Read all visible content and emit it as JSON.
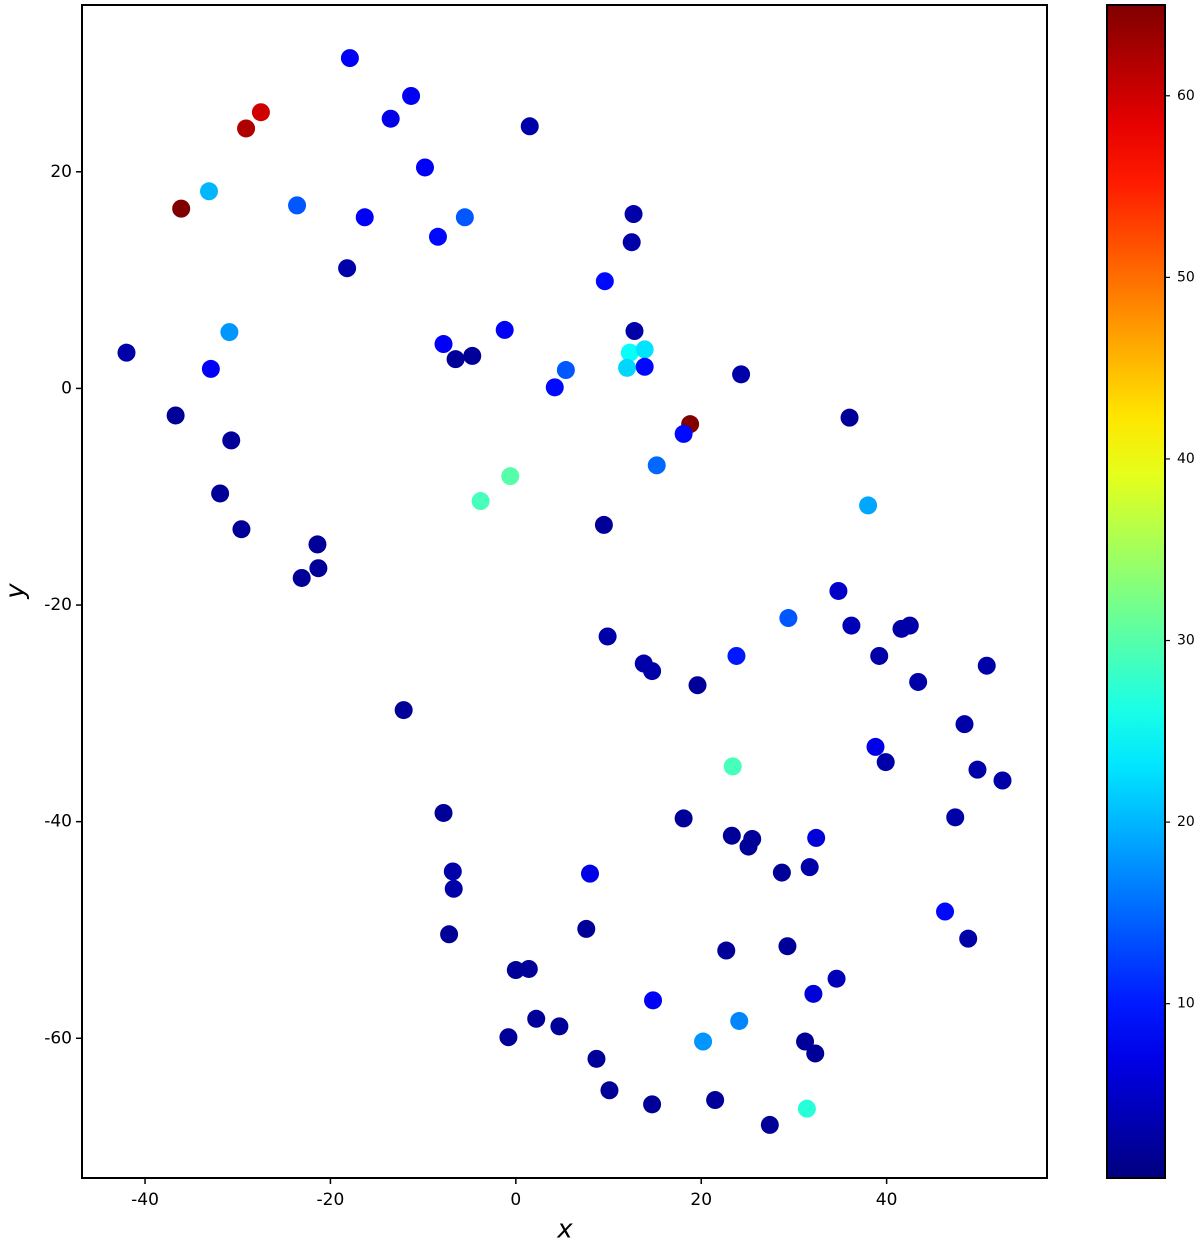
{
  "chart_data": {
    "type": "scatter",
    "xlabel": "x",
    "ylabel": "y",
    "colormap": "jet",
    "xlim": [
      -46.8,
      57.3
    ],
    "ylim": [
      -72.9,
      35.4
    ],
    "xticks": [
      -40,
      -20,
      0,
      20,
      40
    ],
    "yticks": [
      -60,
      -40,
      -20,
      0,
      20
    ],
    "clim": [
      0.4,
      65
    ],
    "cticks": [
      10,
      20,
      30,
      40,
      50,
      60
    ],
    "x": [
      -17.9,
      -11.3,
      -13.5,
      -27.5,
      -29.1,
      1.5,
      -9.8,
      -33.1,
      -36.1,
      -23.6,
      -16.3,
      -5.5,
      -8.4,
      12.7,
      12.5,
      -18.2,
      9.6,
      -42.0,
      -30.9,
      -32.9,
      -7.8,
      -6.5,
      -4.7,
      -1.2,
      12.8,
      12.3,
      13.9,
      12.0,
      13.9,
      5.4,
      4.2,
      24.3,
      -36.7,
      -30.7,
      18.8,
      18.1,
      36.0,
      15.2,
      -0.6,
      -3.8,
      -31.9,
      -29.6,
      9.5,
      38.0,
      -21.4,
      -21.3,
      -23.1,
      34.8,
      29.4,
      36.2,
      41.6,
      42.5,
      9.9,
      23.8,
      39.2,
      13.8,
      14.7,
      19.6,
      43.4,
      50.8,
      -12.1,
      48.4,
      38.8,
      39.9,
      23.4,
      49.8,
      52.5,
      -7.8,
      18.1,
      47.4,
      23.3,
      25.5,
      32.4,
      25.1,
      -6.8,
      -6.7,
      8.0,
      28.7,
      31.7,
      46.3,
      -7.2,
      7.6,
      48.8,
      22.7,
      29.3,
      0.0,
      1.4,
      34.6,
      32.1,
      14.8,
      2.2,
      4.7,
      24.1,
      -0.8,
      20.2,
      31.2,
      32.3,
      8.7,
      10.1,
      21.5,
      14.7,
      31.4,
      27.4
    ],
    "values": [
      30.5,
      27.0,
      24.9,
      25.5,
      24.0,
      24.2,
      20.4,
      18.2,
      16.6,
      16.9,
      15.8,
      15.8,
      14.0,
      16.1,
      13.5,
      11.1,
      9.9,
      3.3,
      5.2,
      1.8,
      4.1,
      2.7,
      3.0,
      5.4,
      5.3,
      3.3,
      3.6,
      1.9,
      2.0,
      1.7,
      0.1,
      1.3,
      -2.5,
      -4.8,
      -3.3,
      -4.2,
      -2.7,
      -7.1,
      -8.1,
      -10.4,
      -9.7,
      -13.0,
      -12.6,
      -10.8,
      -14.4,
      -16.6,
      -17.5,
      -18.7,
      -21.2,
      -21.9,
      -22.2,
      -21.9,
      -22.9,
      -24.7,
      -24.7,
      -25.4,
      -26.1,
      -27.4,
      -27.1,
      -25.6,
      -29.7,
      -31.0,
      -33.1,
      -34.5,
      -34.9,
      -35.2,
      -36.2,
      -39.2,
      -39.7,
      -39.6,
      -41.3,
      -41.6,
      -41.5,
      -42.3,
      -44.6,
      -46.2,
      -44.8,
      -44.7,
      -44.2,
      -48.3,
      -50.4,
      -49.9,
      -50.8,
      -51.9,
      -51.5,
      -53.7,
      -53.6,
      -54.5,
      -55.9,
      -56.5,
      -58.2,
      -58.9,
      -58.4,
      -59.9,
      -60.3,
      -60.3,
      -61.4,
      -61.9,
      -64.8,
      -65.7,
      -66.1,
      -66.5,
      -68.0
    ],
    "c": [
      8,
      8,
      7,
      60,
      62,
      3,
      8,
      20,
      65,
      14,
      8,
      14,
      9,
      3,
      3,
      3,
      9,
      3,
      18,
      8,
      8,
      2,
      2,
      8,
      3,
      25,
      23,
      22,
      9,
      14,
      9,
      3,
      2,
      2,
      65,
      9,
      2,
      15,
      30,
      29,
      2,
      2,
      2,
      19,
      2,
      2,
      2,
      5,
      14,
      4,
      3,
      3,
      3,
      10,
      3,
      3,
      3,
      2,
      3,
      3,
      2,
      3,
      7,
      3,
      29,
      3,
      3,
      2,
      2,
      3,
      2,
      2,
      6,
      2,
      3,
      3,
      7,
      2,
      3,
      9,
      2,
      2,
      3,
      2,
      2,
      2,
      2,
      4,
      6,
      8,
      2,
      2,
      17,
      2,
      18,
      2,
      2,
      2,
      2,
      2,
      2,
      27,
      2
    ]
  }
}
